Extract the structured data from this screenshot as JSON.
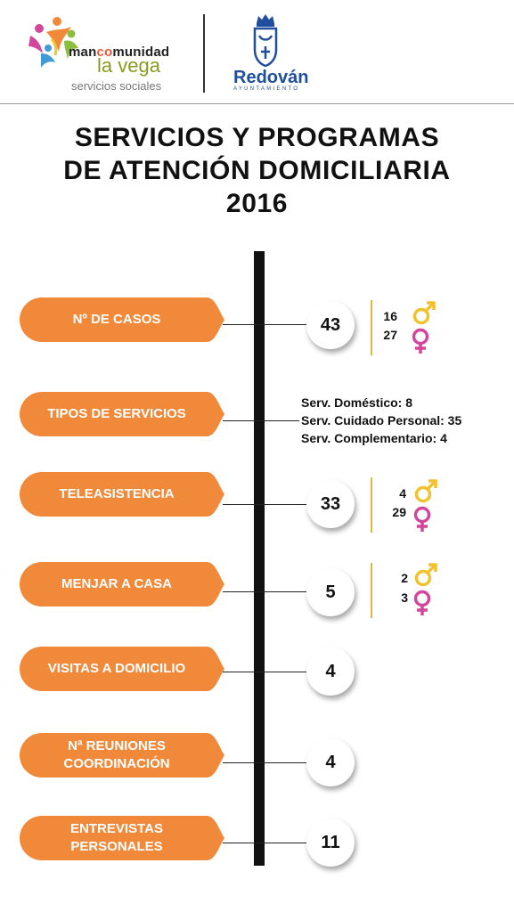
{
  "header": {
    "brand_line1_a": "man",
    "brand_line1_b": "co",
    "brand_line1_c": "munidad",
    "brand_line2": "la vega",
    "brand_line3": "servicios sociales",
    "municipality": "Redován",
    "municipality_sub": "AYUNTAMIENTO"
  },
  "title": {
    "line1": "SERVICIOS Y PROGRAMAS",
    "line2": "DE ATENCIÓN DOMICILIARIA",
    "line3": "2016"
  },
  "colors": {
    "orange": "#f08a3a",
    "male": "#f2c12e",
    "female": "#d2479b",
    "gold_line": "#e0b640"
  },
  "rows": [
    {
      "label": "Nº DE CASOS",
      "value": "43",
      "male": "16",
      "female": "27"
    },
    {
      "label": "TIPOS DE SERVICIOS",
      "services": [
        "Serv. Doméstico: 8",
        "Serv. Cuidado Personal: 35",
        "Serv. Complementario: 4"
      ]
    },
    {
      "label": "TELEASISTENCIA",
      "value": "33",
      "male": "4",
      "female": "29"
    },
    {
      "label": "MENJAR A CASA",
      "value": "5",
      "male": "2",
      "female": "3"
    },
    {
      "label": "VISITAS A DOMICILIO",
      "value": "4"
    },
    {
      "label_line1": "Nª REUNIONES",
      "label_line2": "COORDINACIÓN",
      "value": "4"
    },
    {
      "label_line1": "ENTREVISTAS",
      "label_line2": "PERSONALES",
      "value": "11"
    }
  ],
  "icons": [
    "people-logo-icon",
    "crest-icon",
    "male-symbol-icon",
    "female-symbol-icon"
  ]
}
